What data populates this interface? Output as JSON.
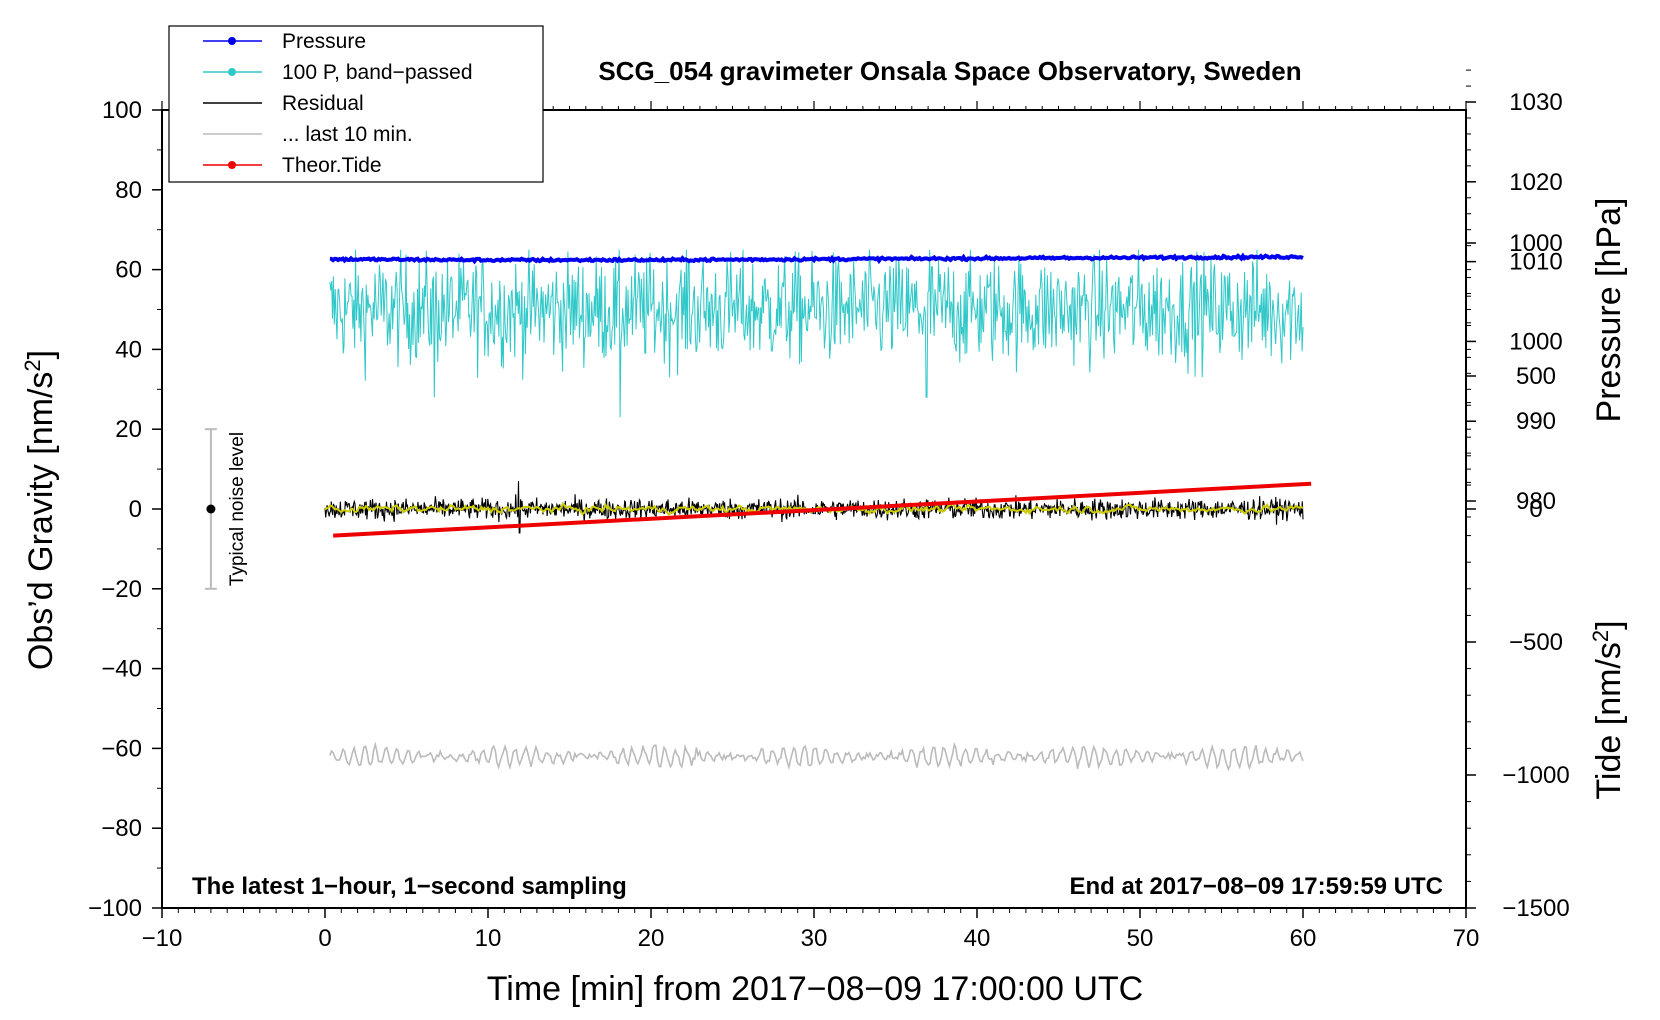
{
  "chart_data": {
    "type": "line",
    "title": "SCG_054 gravimeter Onsala Space Observatory, Sweden",
    "xlabel": "Time [min] from 2017−08−09 17:00:00 UTC",
    "ylabel_left": "Obs’d Gravity [nm/s",
    "ylabel_right_pressure": "Pressure [hPa]",
    "ylabel_right_tide": "Tide [nm/s",
    "unit_sup": "2",
    "unit_close": "]",
    "xlim": [
      -10,
      70
    ],
    "ylim": [
      -100,
      100
    ],
    "x_ticks": [
      {
        "v": -10,
        "label": "−10"
      },
      {
        "v": 0,
        "label": "0"
      },
      {
        "v": 10,
        "label": "10"
      },
      {
        "v": 20,
        "label": "20"
      },
      {
        "v": 30,
        "label": "30"
      },
      {
        "v": 40,
        "label": "40"
      },
      {
        "v": 50,
        "label": "50"
      },
      {
        "v": 60,
        "label": "60"
      },
      {
        "v": 70,
        "label": "70"
      }
    ],
    "y_ticks_left": [
      {
        "v": 100,
        "label": "100"
      },
      {
        "v": 80,
        "label": "80"
      },
      {
        "v": 60,
        "label": "60"
      },
      {
        "v": 40,
        "label": "40"
      },
      {
        "v": 20,
        "label": "20"
      },
      {
        "v": 0,
        "label": "0"
      },
      {
        "v": -20,
        "label": "−20"
      },
      {
        "v": -40,
        "label": "−40"
      },
      {
        "v": -60,
        "label": "−60"
      },
      {
        "v": -80,
        "label": "−80"
      },
      {
        "v": -100,
        "label": "−100"
      }
    ],
    "pressure_axis": {
      "gravity_per_hpa": 2.0,
      "pressure_at_gravity_zero": 979.0,
      "ticks": [
        {
          "v": 980,
          "label": "980"
        },
        {
          "v": 990,
          "label": "990"
        },
        {
          "v": 1000,
          "label": "1000"
        },
        {
          "v": 1010,
          "label": "1010"
        },
        {
          "v": 1020,
          "label": "1020"
        },
        {
          "v": 1030,
          "label": "1030"
        }
      ]
    },
    "tide_axis": {
      "ylim": [
        -1500,
        1500
      ],
      "ticks": [
        {
          "v": 1000,
          "label": "1000"
        },
        {
          "v": 500,
          "label": "500"
        },
        {
          "v": 0,
          "label": "0"
        },
        {
          "v": -500,
          "label": "−500"
        },
        {
          "v": -1000,
          "label": "−1000"
        },
        {
          "v": -1500,
          "label": "−1500"
        }
      ]
    },
    "legend": {
      "position": "top-left",
      "entries": [
        {
          "label": "Pressure",
          "color": "#0000ee",
          "marker": true
        },
        {
          "label": "100 P, band−passed",
          "color": "#30c8c8",
          "marker": true
        },
        {
          "label": "Residual",
          "color": "#000000",
          "marker": false
        },
        {
          "label": "... last 10 min.",
          "color": "#bbbbbb",
          "marker": false
        },
        {
          "label": "Theor.Tide",
          "color": "#ee0000",
          "marker": true
        }
      ]
    },
    "series": [
      {
        "name": "Pressure",
        "color": "#0000ee",
        "axis": "pressure",
        "x": [
          0.3,
          10,
          20,
          30,
          40,
          50,
          60
        ],
        "values": [
          1010.3,
          1010.2,
          1010.2,
          1010.3,
          1010.4,
          1010.5,
          1010.6
        ]
      },
      {
        "name": "100 P, band−passed",
        "color": "#30c8c8",
        "axis": "gravity",
        "x_range": [
          0.3,
          60
        ],
        "mean": 50,
        "typical_amplitude": 9,
        "min": 23,
        "max": 65
      },
      {
        "name": "Residual",
        "color": "#000000",
        "axis": "gravity",
        "x_range": [
          0,
          60
        ],
        "mean": 0,
        "typical_amplitude": 3,
        "min": -6,
        "max": 7
      },
      {
        "name": "Residual (smoothed)",
        "color": "#cccc00",
        "axis": "gravity",
        "x_range": [
          0,
          60
        ],
        "mean": 0,
        "typical_amplitude": 1
      },
      {
        "name": "... last 10 min.",
        "color": "#bbbbbb",
        "axis": "gravity",
        "x_range": [
          0.3,
          60
        ],
        "mean": -62,
        "typical_amplitude": 2.5
      },
      {
        "name": "Theor.Tide",
        "color": "#ee0000",
        "axis": "tide",
        "x": [
          0.5,
          60.5
        ],
        "values": [
          -100,
          95
        ]
      }
    ],
    "noise_level": {
      "label": "Typical noise level",
      "x": -7,
      "center": 0,
      "low": -20,
      "high": 20
    },
    "annotations": {
      "bottom_left": "The latest 1−hour, 1−second sampling",
      "bottom_right": "End at 2017−08−09 17:59:59 UTC"
    }
  }
}
